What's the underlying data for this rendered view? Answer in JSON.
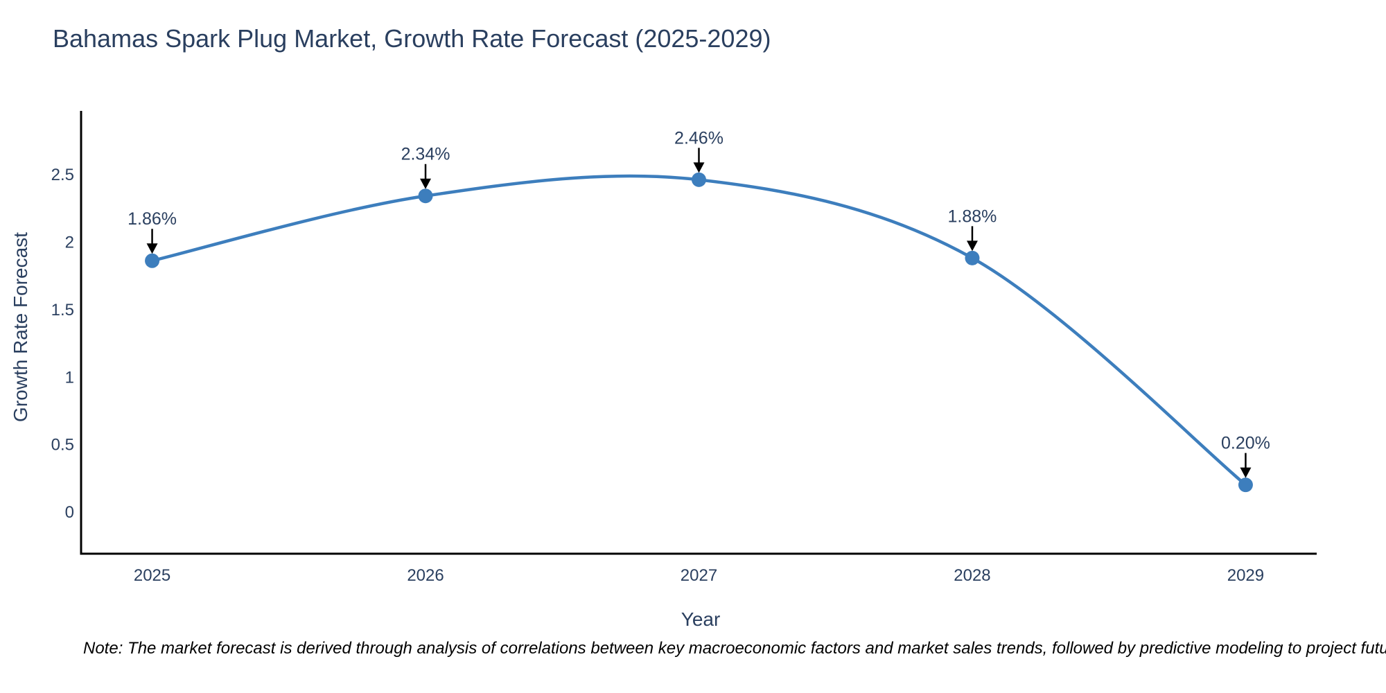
{
  "header": {
    "title": "Bahamas Spark Plug Market, Growth Rate Forecast (2025-2029)"
  },
  "footer": {
    "note": "Note: The market forecast is derived through analysis of correlations between key macroeconomic factors and market sales trends, followed by predictive modeling to project future sales"
  },
  "chart_data": {
    "type": "line",
    "title": "Bahamas Spark Plug Market, Growth Rate Forecast (2025-2029)",
    "xlabel": "Year",
    "ylabel": "Growth Rate Forecast",
    "x": [
      2025,
      2026,
      2027,
      2028,
      2029
    ],
    "x_tick_labels": [
      "2025",
      "2026",
      "2027",
      "2028",
      "2029"
    ],
    "series": [
      {
        "name": "Growth Rate Forecast",
        "values": [
          1.86,
          2.34,
          2.46,
          1.88,
          0.2
        ]
      }
    ],
    "point_annotations": [
      "1.86%",
      "2.34%",
      "2.46%",
      "1.88%",
      "0.20%"
    ],
    "y_ticks": [
      {
        "value": 0,
        "label": "0"
      },
      {
        "value": 0.5,
        "label": "0.5"
      },
      {
        "value": 1,
        "label": "1"
      },
      {
        "value": 1.5,
        "label": "1.5"
      },
      {
        "value": 2,
        "label": "2"
      },
      {
        "value": 2.5,
        "label": "2.5"
      }
    ],
    "xlim": [
      2024.74,
      2029.26
    ],
    "ylim": [
      -0.31,
      2.97
    ],
    "line_shape": "spline",
    "grid": false,
    "legend_position": "none",
    "colors": {
      "line": "#3d7ebd",
      "marker": "#3d7ebd",
      "arrow": "#000000",
      "axis": "#000000",
      "tick_text": "#2a3f5f",
      "title_text": "#2a3f5f",
      "note_text": "#000000",
      "background": "#ffffff"
    }
  }
}
